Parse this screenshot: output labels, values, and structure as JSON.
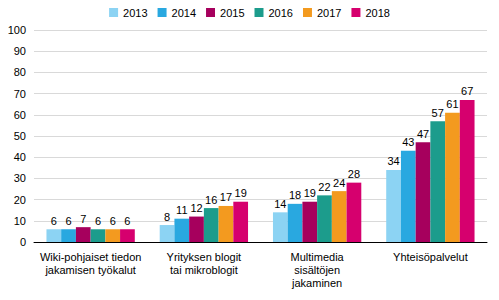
{
  "chart_data": {
    "type": "bar",
    "categories": [
      "Wiki-pohjaiset tiedon\njakamisen työkalut",
      "Yrityksen blogit\ntai mikroblogit",
      "Multimedia\nsisältöjen\njakaminen",
      "Yhteisöpalvelut"
    ],
    "series": [
      {
        "name": "2013",
        "color": "#8cd3f3",
        "values": [
          6,
          8,
          14,
          34
        ]
      },
      {
        "name": "2014",
        "color": "#29a8e0",
        "values": [
          6,
          11,
          18,
          43
        ]
      },
      {
        "name": "2015",
        "color": "#a6005d",
        "values": [
          7,
          12,
          19,
          47
        ]
      },
      {
        "name": "2016",
        "color": "#1c9c8c",
        "values": [
          6,
          16,
          22,
          57
        ]
      },
      {
        "name": "2017",
        "color": "#f39a1f",
        "values": [
          6,
          17,
          24,
          61
        ]
      },
      {
        "name": "2018",
        "color": "#d6006e",
        "values": [
          6,
          19,
          28,
          67
        ]
      }
    ],
    "ylim": [
      0,
      100
    ],
    "yticks": [
      0,
      10,
      20,
      30,
      40,
      50,
      60,
      70,
      80,
      90,
      100
    ],
    "grid": true,
    "legend": "top",
    "data_labels": true
  }
}
